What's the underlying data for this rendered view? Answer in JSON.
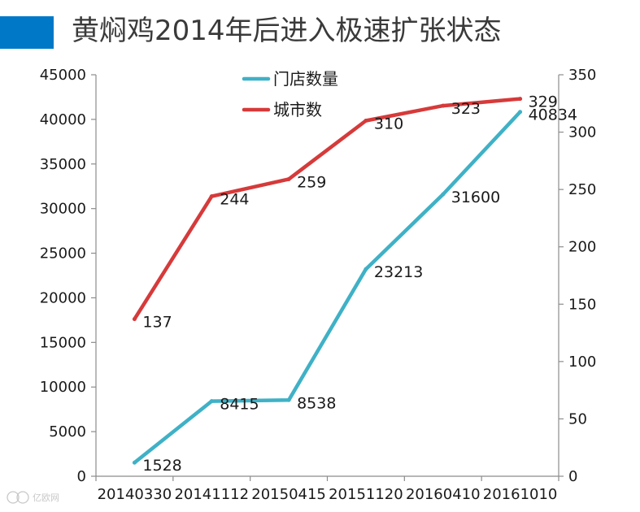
{
  "header": {
    "title": "黄焖鸡2014年后进入极速扩张状态",
    "accent_color": "#0078c8"
  },
  "watermark": {
    "text": "亿欧网",
    "icon": "eo-logo-icon"
  },
  "chart_data": {
    "type": "line",
    "categories": [
      "20140330",
      "20141112",
      "20150415",
      "20151120",
      "20160410",
      "20161010"
    ],
    "series": [
      {
        "name": "门店数量",
        "axis": "left",
        "color": "#3fb1c6",
        "values": [
          1528,
          8415,
          8538,
          23213,
          31600,
          40834
        ],
        "labels": [
          "1528",
          "8415",
          "8538",
          "23213",
          "31600",
          "40834"
        ]
      },
      {
        "name": "城市数",
        "axis": "right",
        "color": "#d63a3a",
        "values": [
          137,
          244,
          259,
          310,
          323,
          329
        ],
        "labels": [
          "137",
          "244",
          "259",
          "310",
          "323",
          "329"
        ]
      }
    ],
    "y_left": {
      "min": 0,
      "max": 45000,
      "ticks": [
        "0",
        "5000",
        "10000",
        "15000",
        "20000",
        "25000",
        "30000",
        "35000",
        "40000",
        "45000"
      ]
    },
    "y_right": {
      "min": 0,
      "max": 350,
      "ticks": [
        "0",
        "50",
        "100",
        "150",
        "200",
        "250",
        "300",
        "350"
      ]
    },
    "grid": false,
    "legend_position": "top-center"
  }
}
